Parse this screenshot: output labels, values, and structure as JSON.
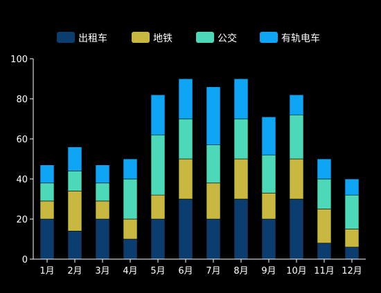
{
  "chart_data": {
    "type": "bar",
    "stacked": true,
    "categories": [
      "1月",
      "2月",
      "3月",
      "4月",
      "5月",
      "6月",
      "7月",
      "8月",
      "9月",
      "10月",
      "11月",
      "12月"
    ],
    "series": [
      {
        "name": "出租车",
        "color": "#0b3d6e",
        "values": [
          20,
          14,
          20,
          10,
          20,
          30,
          20,
          30,
          20,
          30,
          8,
          6
        ]
      },
      {
        "name": "地铁",
        "color": "#c9b83f",
        "values": [
          9,
          20,
          9,
          10,
          12,
          20,
          18,
          20,
          13,
          20,
          17,
          9
        ]
      },
      {
        "name": "公交",
        "color": "#4dd9b8",
        "values": [
          9,
          10,
          9,
          20,
          30,
          20,
          19,
          20,
          19,
          22,
          15,
          17
        ]
      },
      {
        "name": "有轨电车",
        "color": "#0ea5f5",
        "values": [
          9,
          12,
          9,
          10,
          20,
          20,
          29,
          20,
          19,
          10,
          10,
          8
        ]
      }
    ],
    "y_ticks": [
      0,
      20,
      40,
      60,
      80,
      100
    ],
    "ylim": [
      0,
      100
    ],
    "grid": false,
    "legend_position": "top"
  }
}
